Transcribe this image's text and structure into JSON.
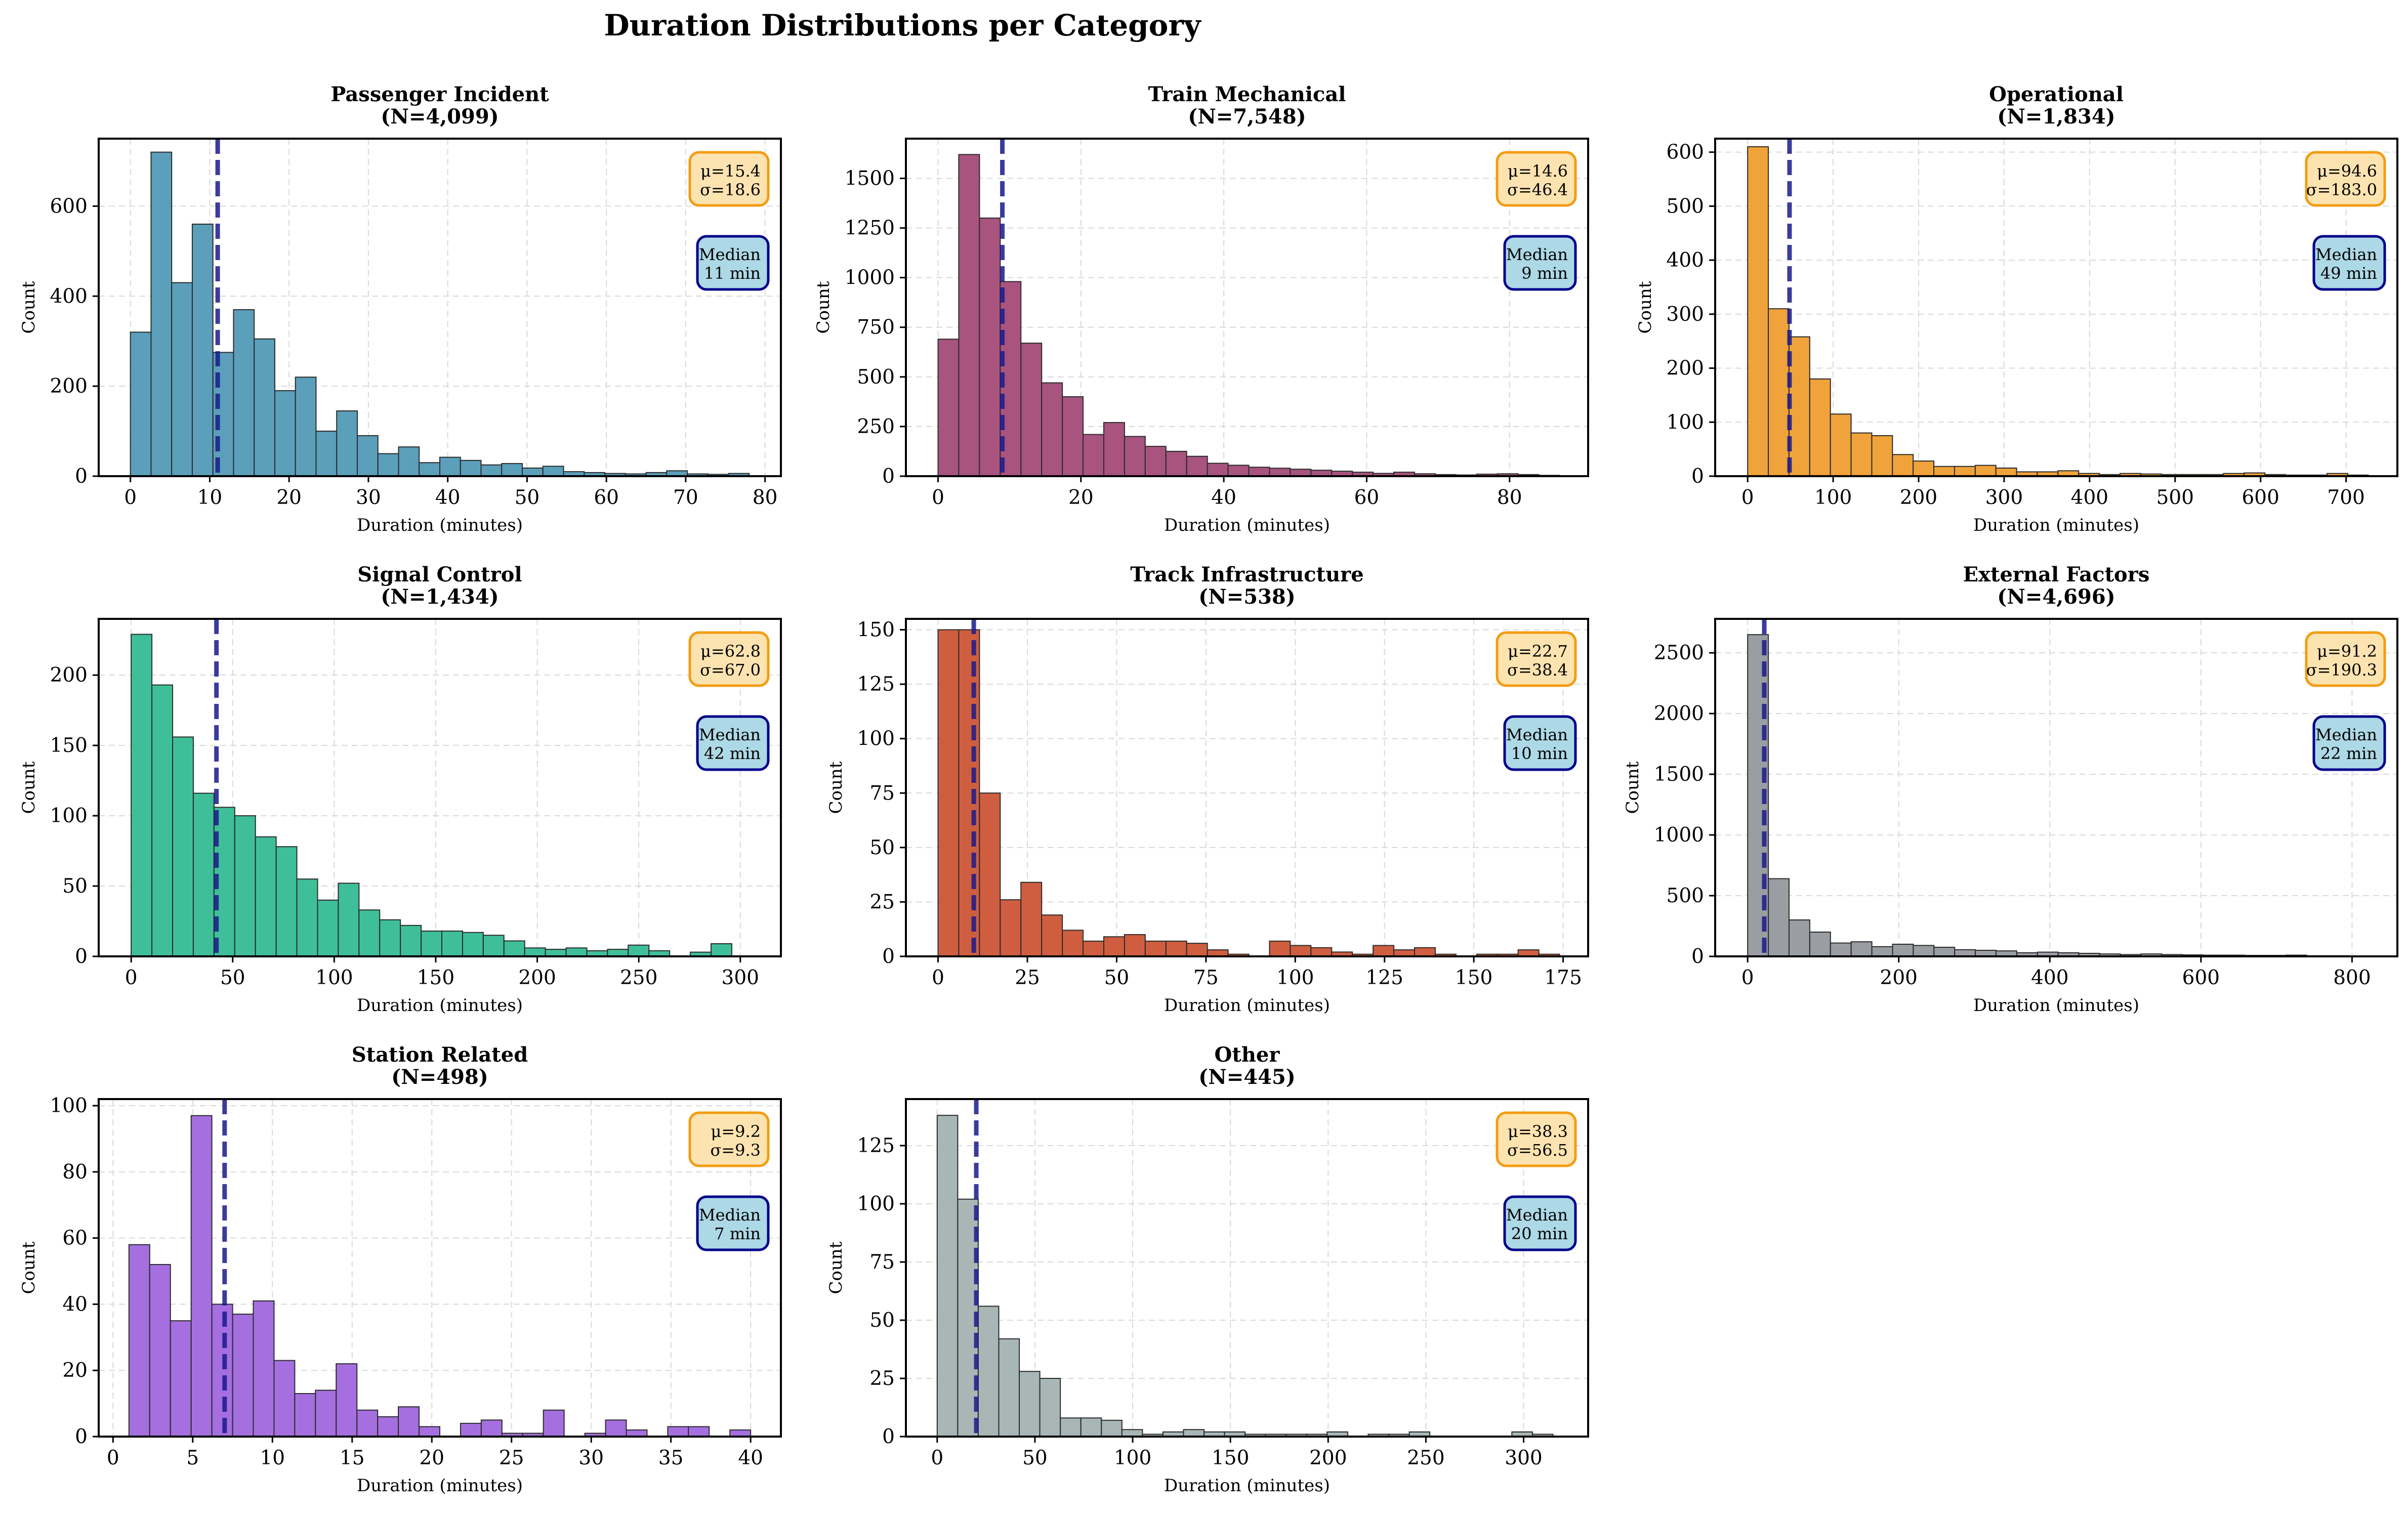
{
  "figure_title": "Duration Distributions per Category",
  "colors": {
    "median_line": "#1a1a8c",
    "stats_box_fill": "#fde3b0",
    "stats_box_edge": "#f39c12",
    "median_box_fill": "#add8e6",
    "median_box_edge": "#00008b",
    "grid": "#d9d9d9"
  },
  "chart_data": [
    {
      "type": "bar",
      "title": "Passenger Incident",
      "n_label": "(N=4,099)",
      "color": "#5b9fbb",
      "xlabel": "Duration (minutes)",
      "ylabel": "Count",
      "xlim": [
        -4,
        82
      ],
      "ylim": [
        0,
        750
      ],
      "xticks": [
        0,
        10,
        20,
        30,
        40,
        50,
        60,
        70,
        80
      ],
      "yticks": [
        0,
        200,
        400,
        600
      ],
      "bin_start": 0,
      "bin_width": 2.6,
      "values": [
        320,
        720,
        430,
        560,
        275,
        370,
        305,
        190,
        220,
        100,
        145,
        90,
        50,
        65,
        30,
        42,
        35,
        25,
        28,
        18,
        22,
        10,
        8,
        6,
        5,
        8,
        12,
        5,
        4,
        6
      ],
      "median": 11,
      "stats_text": [
        "μ=15.4",
        "σ=18.6"
      ],
      "median_text": [
        "Median",
        "11 min"
      ]
    },
    {
      "type": "bar",
      "title": "Train Mechanical",
      "n_label": "(N=7,548)",
      "color": "#a8547f",
      "xlabel": "Duration (minutes)",
      "ylabel": "Count",
      "xlim": [
        -4.5,
        91
      ],
      "ylim": [
        0,
        1700
      ],
      "xticks": [
        0,
        20,
        40,
        60,
        80
      ],
      "yticks": [
        0,
        250,
        500,
        750,
        1000,
        1250,
        1500
      ],
      "bin_start": 0,
      "bin_width": 2.9,
      "values": [
        690,
        1620,
        1300,
        980,
        670,
        470,
        400,
        210,
        270,
        200,
        150,
        125,
        100,
        65,
        55,
        45,
        40,
        35,
        30,
        25,
        20,
        14,
        20,
        12,
        8,
        6,
        10,
        12,
        8,
        4
      ],
      "median": 9,
      "stats_text": [
        "μ=14.6",
        "σ=46.4"
      ],
      "median_text": [
        "Median",
        "9 min"
      ]
    },
    {
      "type": "bar",
      "title": "Operational",
      "n_label": "(N=1,834)",
      "color": "#f0a33a",
      "xlabel": "Duration (minutes)",
      "ylabel": "Count",
      "xlim": [
        -38,
        760
      ],
      "ylim": [
        0,
        625
      ],
      "xticks": [
        0,
        100,
        200,
        300,
        400,
        500,
        600,
        700
      ],
      "yticks": [
        0,
        100,
        200,
        300,
        400,
        500,
        600
      ],
      "bin_start": 0,
      "bin_width": 24.2,
      "values": [
        610,
        310,
        258,
        180,
        115,
        80,
        75,
        40,
        28,
        18,
        18,
        20,
        15,
        8,
        8,
        10,
        5,
        3,
        5,
        4,
        3,
        3,
        3,
        5,
        6,
        3,
        2,
        2,
        5,
        2
      ],
      "median": 49,
      "stats_text": [
        "μ=94.6",
        "σ=183.0"
      ],
      "median_text": [
        "Median",
        "49 min"
      ]
    },
    {
      "type": "bar",
      "title": "Signal Control",
      "n_label": "(N=1,434)",
      "color": "#3fbf99",
      "xlabel": "Duration (minutes)",
      "ylabel": "Count",
      "xlim": [
        -16,
        320
      ],
      "ylim": [
        0,
        240
      ],
      "xticks": [
        0,
        50,
        100,
        150,
        200,
        250,
        300
      ],
      "yticks": [
        0,
        50,
        100,
        150,
        200
      ],
      "bin_start": 0,
      "bin_width": 10.2,
      "values": [
        229,
        193,
        156,
        116,
        106,
        100,
        85,
        78,
        55,
        40,
        52,
        33,
        26,
        22,
        18,
        18,
        17,
        15,
        11,
        6,
        5,
        6,
        4,
        5,
        8,
        4,
        0,
        3,
        9
      ],
      "median": 42,
      "stats_text": [
        "μ=62.8",
        "σ=67.0"
      ],
      "median_text": [
        "Median",
        "42 min"
      ]
    },
    {
      "type": "bar",
      "title": "Track Infrastructure",
      "n_label": "(N=538)",
      "color": "#cf5e40",
      "xlabel": "Duration (minutes)",
      "ylabel": "Count",
      "xlim": [
        -9,
        182
      ],
      "ylim": [
        0,
        155
      ],
      "xticks": [
        0,
        25,
        50,
        75,
        100,
        125,
        150,
        175
      ],
      "yticks": [
        0,
        25,
        50,
        75,
        100,
        125,
        150
      ],
      "bin_start": 0,
      "bin_width": 5.8,
      "values": [
        150,
        150,
        75,
        26,
        34,
        19,
        12,
        7,
        9,
        10,
        7,
        7,
        6,
        3,
        1,
        0,
        7,
        5,
        4,
        2,
        1,
        5,
        3,
        4,
        1,
        0,
        1,
        1,
        3,
        1
      ],
      "median": 10,
      "stats_text": [
        "μ=22.7",
        "σ=38.4"
      ],
      "median_text": [
        "Median",
        "10 min"
      ]
    },
    {
      "type": "bar",
      "title": "External Factors",
      "n_label": "(N=4,696)",
      "color": "#9a9da2",
      "xlabel": "Duration (minutes)",
      "ylabel": "Count",
      "xlim": [
        -43,
        860
      ],
      "ylim": [
        0,
        2780
      ],
      "xticks": [
        0,
        200,
        400,
        600,
        800
      ],
      "yticks": [
        0,
        500,
        1000,
        1500,
        2000,
        2500
      ],
      "bin_start": 0,
      "bin_width": 27.4,
      "values": [
        2650,
        640,
        300,
        200,
        110,
        120,
        80,
        100,
        90,
        75,
        55,
        50,
        45,
        30,
        35,
        30,
        25,
        20,
        15,
        20,
        15,
        12,
        10,
        10,
        8,
        8,
        10,
        5,
        5,
        3
      ],
      "median": 22,
      "stats_text": [
        "μ=91.2",
        "σ=190.3"
      ],
      "median_text": [
        "Median",
        "22 min"
      ]
    },
    {
      "type": "bar",
      "title": "Station Related",
      "n_label": "(N=498)",
      "color": "#a56fe0",
      "xlabel": "Duration (minutes)",
      "ylabel": "Count",
      "xlim": [
        -0.9,
        41.9
      ],
      "ylim": [
        0,
        102
      ],
      "xticks": [
        0,
        5,
        10,
        15,
        20,
        25,
        30,
        35,
        40
      ],
      "yticks": [
        0,
        20,
        40,
        60,
        80,
        100
      ],
      "bin_start": 1,
      "bin_width": 1.3,
      "values": [
        58,
        52,
        35,
        97,
        40,
        37,
        41,
        23,
        13,
        14,
        22,
        8,
        6,
        9,
        3,
        0,
        4,
        5,
        1,
        1,
        8,
        0,
        1,
        5,
        2,
        0,
        3,
        3,
        0,
        2
      ],
      "median": 7,
      "stats_text": [
        "μ=9.2",
        "σ=9.3"
      ],
      "median_text": [
        "Median",
        "7 min"
      ]
    },
    {
      "type": "bar",
      "title": "Other",
      "n_label": "(N=445)",
      "color": "#a8b6b6",
      "xlabel": "Duration (minutes)",
      "ylabel": "Count",
      "xlim": [
        -16,
        333
      ],
      "ylim": [
        0,
        145
      ],
      "xticks": [
        0,
        50,
        100,
        150,
        200,
        250,
        300
      ],
      "yticks": [
        0,
        25,
        50,
        75,
        100,
        125
      ],
      "bin_start": 0,
      "bin_width": 10.5,
      "values": [
        138,
        102,
        56,
        42,
        28,
        25,
        8,
        8,
        7,
        3,
        1,
        2,
        3,
        2,
        2,
        1,
        1,
        1,
        1,
        2,
        0,
        1,
        1,
        2,
        0,
        0,
        0,
        0,
        2,
        1
      ],
      "median": 20,
      "stats_text": [
        "μ=38.3",
        "σ=56.5"
      ],
      "median_text": [
        "Median",
        "20 min"
      ]
    }
  ]
}
